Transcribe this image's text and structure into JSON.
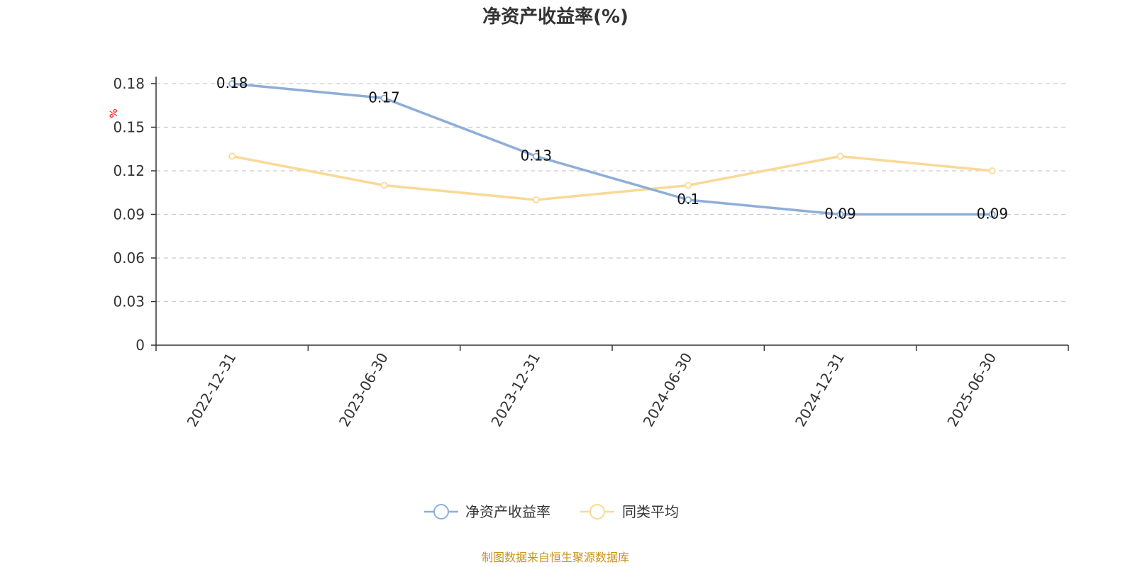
{
  "chart_data": {
    "type": "line",
    "title": "净资产收益率(%)",
    "ylabel": "%",
    "xlabel": "",
    "categories": [
      "2022-12-31",
      "2023-06-30",
      "2023-12-31",
      "2024-06-30",
      "2024-12-31",
      "2025-06-30"
    ],
    "ylim": [
      0,
      0.18
    ],
    "yticks": [
      "0",
      "0.03",
      "0.06",
      "0.09",
      "0.12",
      "0.15",
      "0.18"
    ],
    "grid": true,
    "legend_position": "bottom-center",
    "series": [
      {
        "name": "净资产收益率",
        "values": [
          0.18,
          0.17,
          0.13,
          0.1,
          0.09,
          0.09
        ],
        "labels": [
          "0.18",
          "0.17",
          "0.13",
          "0.1",
          "0.09",
          "0.09"
        ],
        "color": "#8eaed8",
        "show_labels": true
      },
      {
        "name": "同类平均",
        "values": [
          0.13,
          0.11,
          0.1,
          0.11,
          0.13,
          0.12
        ],
        "color": "#fad996",
        "show_labels": false
      }
    ]
  },
  "source_text": "制图数据来自恒生聚源数据库",
  "colors": {
    "axis": "#333333",
    "grid": "#cccccc",
    "unit": "#ff0000",
    "source": "#c8941c"
  }
}
